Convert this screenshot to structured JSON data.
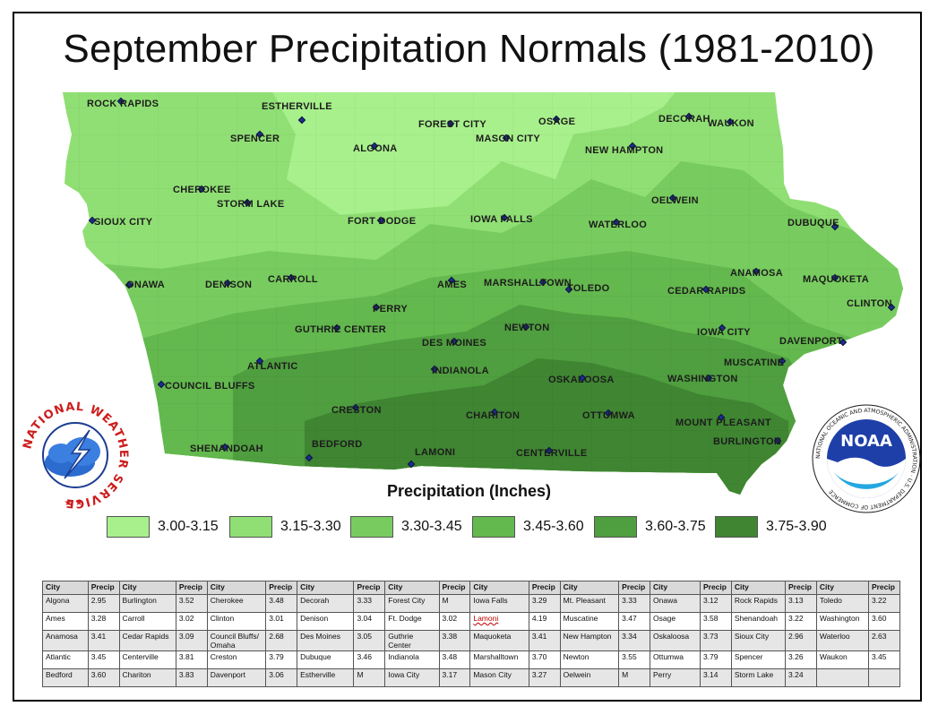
{
  "title": "September Precipitation Normals (1981-2010)",
  "legend": {
    "title": "Precipitation (Inches)",
    "items": [
      {
        "label": "3.00-3.15",
        "color": "#a8f08c"
      },
      {
        "label": "3.15-3.30",
        "color": "#90df74"
      },
      {
        "label": "3.30-3.45",
        "color": "#78cc5f"
      },
      {
        "label": "3.45-3.60",
        "color": "#63b84e"
      },
      {
        "label": "3.60-3.75",
        "color": "#4f9e3f"
      },
      {
        "label": "3.75-3.90",
        "color": "#3f8532"
      }
    ]
  },
  "cities": [
    {
      "name": "ROCK RAPIDS"
    },
    {
      "name": "ESTHERVILLE"
    },
    {
      "name": "FOREST CITY"
    },
    {
      "name": "OSAGE"
    },
    {
      "name": "DECORAH"
    },
    {
      "name": "WAUKON"
    },
    {
      "name": "SPENCER"
    },
    {
      "name": "ALGONA"
    },
    {
      "name": "MASON CITY"
    },
    {
      "name": "NEW HAMPTON"
    },
    {
      "name": "CHEROKEE"
    },
    {
      "name": "STORM LAKE"
    },
    {
      "name": "OELWEIN"
    },
    {
      "name": "SIOUX CITY"
    },
    {
      "name": "FORT DODGE"
    },
    {
      "name": "IOWA FALLS"
    },
    {
      "name": "WATERLOO"
    },
    {
      "name": "DUBUQUE"
    },
    {
      "name": "ONAWA"
    },
    {
      "name": "DENISON"
    },
    {
      "name": "CARROLL"
    },
    {
      "name": "AMES"
    },
    {
      "name": "MARSHALLTOWN"
    },
    {
      "name": "TOLEDO"
    },
    {
      "name": "CEDAR RAPIDS"
    },
    {
      "name": "ANAMOSA"
    },
    {
      "name": "MAQUOKETA"
    },
    {
      "name": "CLINTON"
    },
    {
      "name": "PERRY"
    },
    {
      "name": "GUTHRIE CENTER"
    },
    {
      "name": "DES MOINES"
    },
    {
      "name": "NEWTON"
    },
    {
      "name": "IOWA CITY"
    },
    {
      "name": "DAVENPORT"
    },
    {
      "name": "ATLANTIC"
    },
    {
      "name": "INDIANOLA"
    },
    {
      "name": "MUSCATINE"
    },
    {
      "name": "COUNCIL BLUFFS"
    },
    {
      "name": "OSKALOOSA"
    },
    {
      "name": "WASHINGTON"
    },
    {
      "name": "CRESTON"
    },
    {
      "name": "CHARITON"
    },
    {
      "name": "OTTUMWA"
    },
    {
      "name": "MOUNT PLEASANT"
    },
    {
      "name": "SHENANDOAH"
    },
    {
      "name": "BEDFORD"
    },
    {
      "name": "LAMONI"
    },
    {
      "name": "CENTERVILLE"
    },
    {
      "name": "BURLINGTON"
    }
  ],
  "logos": {
    "nws": {
      "text": "NATIONAL WEATHER SERVICE"
    },
    "noaa": {
      "text": "NOAA",
      "ring_text": "NATIONAL OCEANIC AND ATMOSPHERIC ADMINISTRATION · U.S. DEPARTMENT OF COMMERCE"
    }
  },
  "table": {
    "headers": [
      "City",
      "Precip",
      "City",
      "Precip",
      "City",
      "Precip",
      "City",
      "Precip",
      "City",
      "Precip",
      "City",
      "Precip",
      "City",
      "Precip",
      "City",
      "Precip",
      "City",
      "Precip",
      "City",
      "Precip"
    ],
    "rows": [
      [
        "Algona",
        "2.95",
        "Burlington",
        "3.52",
        "Cherokee",
        "3.48",
        "Decorah",
        "3.33",
        "Forest City",
        "M",
        "Iowa Falls",
        "3.29",
        "Mt. Pleasant",
        "3.33",
        "Onawa",
        "3.12",
        "Rock Rapids",
        "3.13",
        "Toledo",
        "3.22"
      ],
      [
        "Ames",
        "3.28",
        "Carroll",
        "3.02",
        "Clinton",
        "3.01",
        "Denison",
        "3.04",
        "Ft. Dodge",
        "3.02",
        "Lamoni",
        "4.19",
        "Muscatine",
        "3.47",
        "Osage",
        "3.58",
        "Shenandoah",
        "3.22",
        "Washington",
        "3.60"
      ],
      [
        "Anamosa",
        "3.41",
        "Cedar Rapids",
        "3.09",
        "Council Bluffs/ Omaha",
        "2.68",
        "Des Moines",
        "3.05",
        "Guthrie Center",
        "3.38",
        "Maquoketa",
        "3.41",
        "New Hampton",
        "3.34",
        "Oskaloosa",
        "3.73",
        "Sioux City",
        "2.96",
        "Waterloo",
        "2.63"
      ],
      [
        "Atlantic",
        "3.45",
        "Centerville",
        "3.81",
        "Creston",
        "3.79",
        "Dubuque",
        "3.46",
        "Indianola",
        "3.48",
        "Marshalltown",
        "3.70",
        "Newton",
        "3.55",
        "Ottumwa",
        "3.79",
        "Spencer",
        "3.26",
        "Waukon",
        "3.45"
      ],
      [
        "Bedford",
        "3.60",
        "Chariton",
        "3.83",
        "Davenport",
        "3.06",
        "Estherville",
        "M",
        "Iowa City",
        "3.17",
        "Mason City",
        "3.27",
        "Oelwein",
        "M",
        "Perry",
        "3.14",
        "Storm Lake",
        "3.24",
        "",
        ""
      ]
    ]
  }
}
